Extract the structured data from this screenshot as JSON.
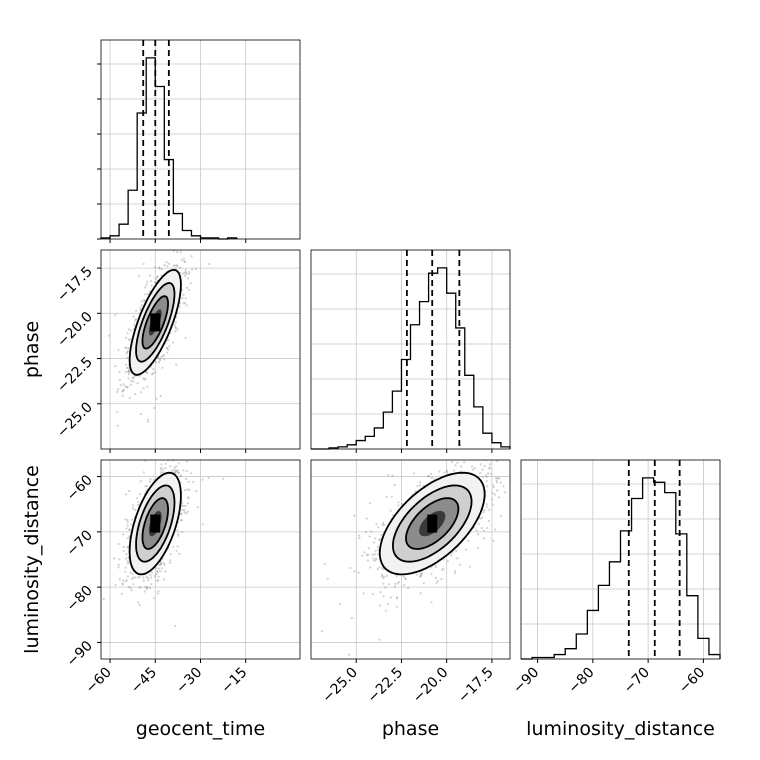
{
  "chart_data": {
    "type": "corner",
    "parameters": [
      {
        "label": "geocent_time",
        "range": [
          -63,
          3
        ],
        "ticks": [
          -60,
          -45,
          -30,
          -15
        ],
        "tick_labels": [
          "−60",
          "−45",
          "−30",
          "−15"
        ],
        "quantiles": [
          -49,
          -45,
          -40.5
        ]
      },
      {
        "label": "phase",
        "range": [
          -27.5,
          -16.5
        ],
        "ticks": [
          -25.0,
          -22.5,
          -20.0,
          -17.5
        ],
        "tick_labels": [
          "−25.0",
          "−22.5",
          "−20.0",
          "−17.5"
        ],
        "quantiles": [
          -22.2,
          -20.8,
          -19.3
        ]
      },
      {
        "label": "luminosity_distance",
        "range": [
          -93,
          -57
        ],
        "ticks": [
          -90,
          -80,
          -70,
          -60
        ],
        "tick_labels": [
          "−90",
          "−80",
          "−70",
          "−60"
        ],
        "quantiles": [
          -73.5,
          -68.8,
          -64.3
        ]
      }
    ],
    "histograms": [
      {
        "parameter": "geocent_time",
        "bin_edges": [
          -63,
          -60,
          -57,
          -54,
          -51,
          -48,
          -45,
          -42,
          -39,
          -36,
          -33,
          -30,
          -27,
          -24,
          -21,
          -18
        ],
        "counts": [
          1,
          3,
          14,
          46,
          119,
          171,
          144,
          75,
          24,
          8,
          3,
          1,
          1,
          0,
          1
        ]
      },
      {
        "parameter": "phase",
        "bin_edges": [
          -27.5,
          -27.0,
          -26.5,
          -26.0,
          -25.5,
          -25.0,
          -24.5,
          -24.0,
          -23.5,
          -23.0,
          -22.5,
          -22.0,
          -21.5,
          -21.0,
          -20.5,
          -20.0,
          -19.5,
          -19.0,
          -18.5,
          -18.0,
          -17.5,
          -17.0,
          -16.5
        ],
        "counts": [
          0,
          0,
          1,
          2,
          4,
          8,
          12,
          20,
          35,
          55,
          85,
          118,
          140,
          167,
          172,
          148,
          115,
          70,
          40,
          15,
          6,
          2
        ]
      },
      {
        "parameter": "luminosity_distance",
        "bin_edges": [
          -93,
          -91,
          -89,
          -87,
          -85,
          -83,
          -81,
          -79,
          -77,
          -75,
          -73,
          -71,
          -69,
          -67,
          -65,
          -63,
          -61,
          -59,
          -57
        ],
        "counts": [
          0,
          1,
          1,
          3,
          7,
          17,
          33,
          50,
          66,
          87,
          109,
          123,
          120,
          113,
          85,
          43,
          14,
          3
        ]
      }
    ],
    "contours": [
      {
        "x": "geocent_time",
        "y": "phase",
        "center": [
          -45,
          -20.5
        ],
        "correlation": 0.72,
        "levels": [
          0.5,
          1.0,
          1.5,
          2.0
        ]
      },
      {
        "x": "geocent_time",
        "y": "luminosity_distance",
        "center": [
          -45,
          -68.5
        ],
        "correlation": 0.55,
        "levels": [
          0.5,
          1.0,
          1.5,
          2.0
        ]
      },
      {
        "x": "phase",
        "y": "luminosity_distance",
        "center": [
          -20.8,
          -68.5
        ],
        "correlation": 0.58,
        "levels": [
          0.5,
          1.0,
          1.5,
          2.0
        ]
      }
    ],
    "grid": true
  }
}
